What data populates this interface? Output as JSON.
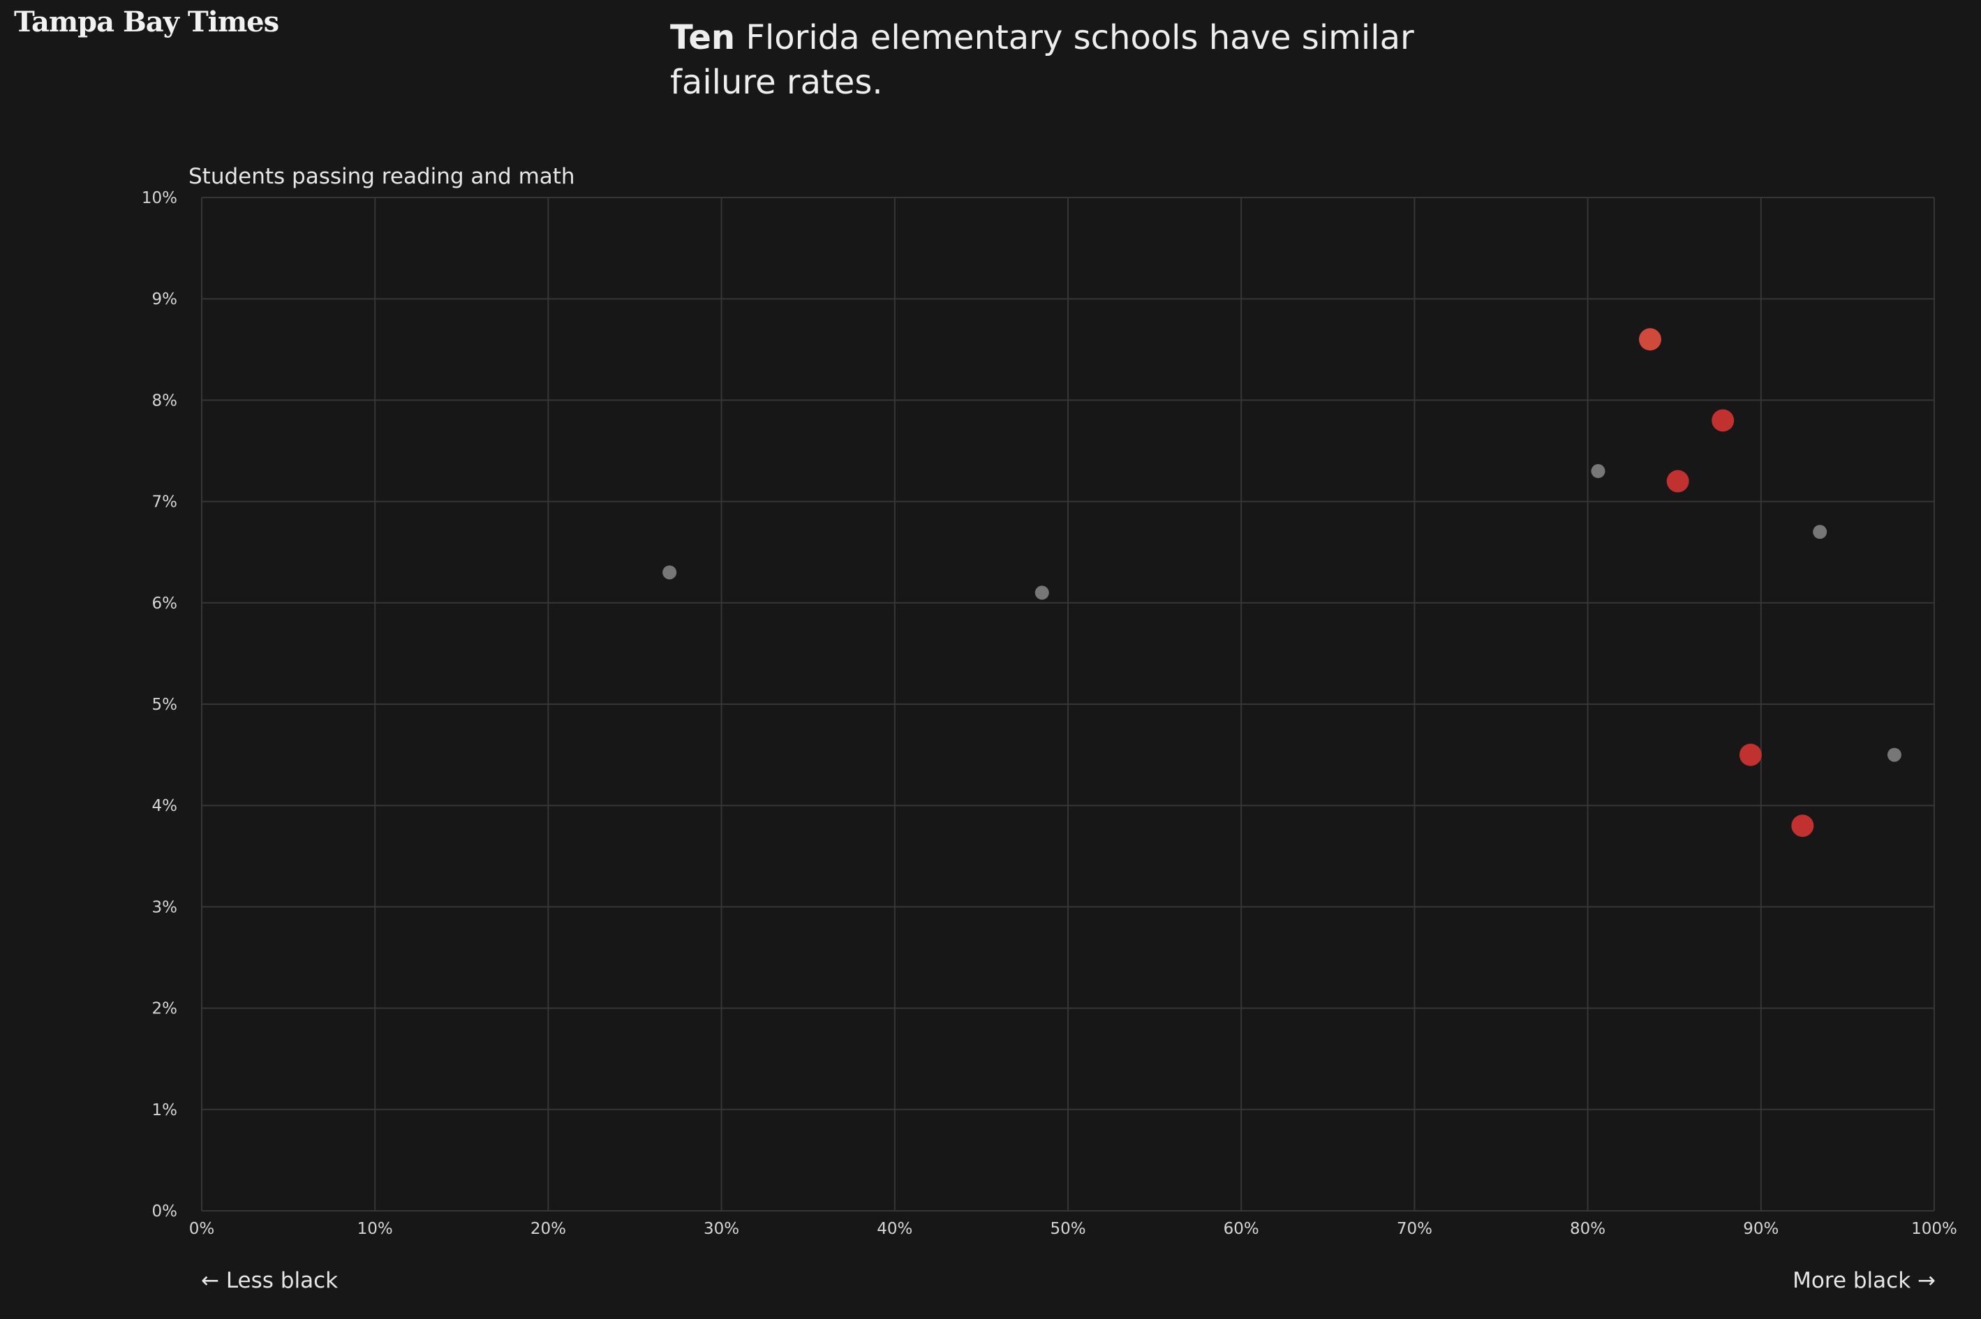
{
  "brand": {
    "logo_text": "Tampa Bay Times"
  },
  "headline": {
    "lead": "Ten",
    "rest": " Florida elementary schools have similar failure rates."
  },
  "colors": {
    "background": "#171717",
    "highlight": "#c0312f",
    "highlight_alt": "#cf4a3a",
    "other": "#777777",
    "grid": "#363636"
  },
  "chart_data": {
    "type": "scatter",
    "ylabel": "Students passing reading and math",
    "xlim": [
      0,
      100
    ],
    "ylim": [
      0,
      10
    ],
    "x_ticks": [
      "0%",
      "10%",
      "20%",
      "30%",
      "40%",
      "50%",
      "60%",
      "70%",
      "80%",
      "90%",
      "100%"
    ],
    "y_ticks": [
      "0%",
      "1%",
      "2%",
      "3%",
      "4%",
      "5%",
      "6%",
      "7%",
      "8%",
      "9%",
      "10%"
    ],
    "x_left_label": "← Less black",
    "x_right_label": "More black →",
    "grid": true,
    "series": [
      {
        "color": "#c0312f",
        "points": [
          {
            "x": 83.6,
            "y": 8.6,
            "color": "#cf4a3a"
          },
          {
            "x": 87.8,
            "y": 7.8
          },
          {
            "x": 85.2,
            "y": 7.2
          },
          {
            "x": 89.4,
            "y": 4.5
          },
          {
            "x": 92.4,
            "y": 3.8
          }
        ]
      },
      {
        "color": "#777777",
        "points": [
          {
            "x": 27.0,
            "y": 6.3
          },
          {
            "x": 48.5,
            "y": 6.1
          },
          {
            "x": 80.6,
            "y": 7.3
          },
          {
            "x": 93.4,
            "y": 6.7
          },
          {
            "x": 97.7,
            "y": 4.5
          }
        ]
      }
    ]
  }
}
